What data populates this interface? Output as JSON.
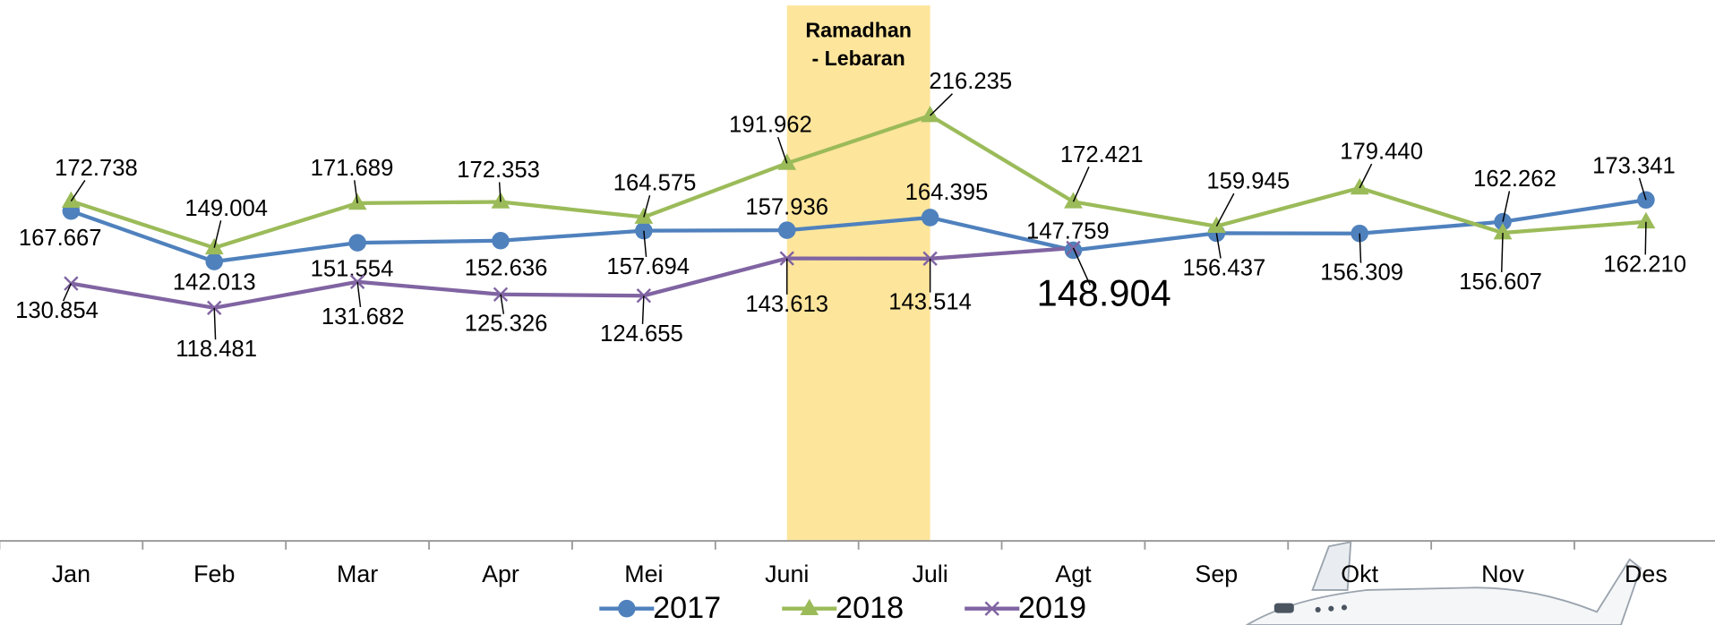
{
  "chart_data": {
    "type": "line",
    "categories": [
      "Jan",
      "Feb",
      "Mar",
      "Apr",
      "Mei",
      "Juni",
      "Juli",
      "Agt",
      "Sep",
      "Okt",
      "Nov",
      "Des"
    ],
    "ylim": [
      0,
      275
    ],
    "highlight": {
      "from": "Juni",
      "to": "Juli",
      "color": "#fde59c",
      "label": [
        "Ramadhan",
        "- Lebaran"
      ]
    },
    "highlight_value": {
      "series": "2019",
      "category": "Agt",
      "color": "#c00000"
    },
    "series": [
      {
        "name": "2017",
        "color": "#4f81bd",
        "marker": "circle",
        "values": [
          167.667,
          142.013,
          151.554,
          152.636,
          157.694,
          157.936,
          164.395,
          147.759,
          156.437,
          156.309,
          162.262,
          173.341
        ],
        "value_labels": [
          "167.667",
          "142.013",
          "151.554",
          "152.636",
          "157.694",
          "157.936",
          "164.395",
          "147.759",
          "156.437",
          "156.309",
          "162.262",
          "173.341"
        ]
      },
      {
        "name": "2018",
        "color": "#9bbb59",
        "marker": "triangle",
        "values": [
          172.738,
          149.004,
          171.689,
          172.353,
          164.575,
          191.962,
          216.235,
          172.421,
          159.945,
          179.44,
          156.607,
          162.21
        ],
        "value_labels": [
          "172.738",
          "149.004",
          "171.689",
          "172.353",
          "164.575",
          "191.962",
          "216.235",
          "172.421",
          "159.945",
          "179.440",
          "156.607",
          "162.210"
        ]
      },
      {
        "name": "2019",
        "color": "#8064a2",
        "marker": "x",
        "values": [
          130.854,
          118.481,
          131.682,
          125.326,
          124.655,
          143.613,
          143.514,
          148.904,
          null,
          null,
          null,
          null
        ],
        "value_labels": [
          "130.854",
          "118.481",
          "131.682",
          "125.326",
          "124.655",
          "143.613",
          "143.514",
          "148.904",
          null,
          null,
          null,
          null
        ]
      }
    ],
    "legend": "bottom"
  }
}
